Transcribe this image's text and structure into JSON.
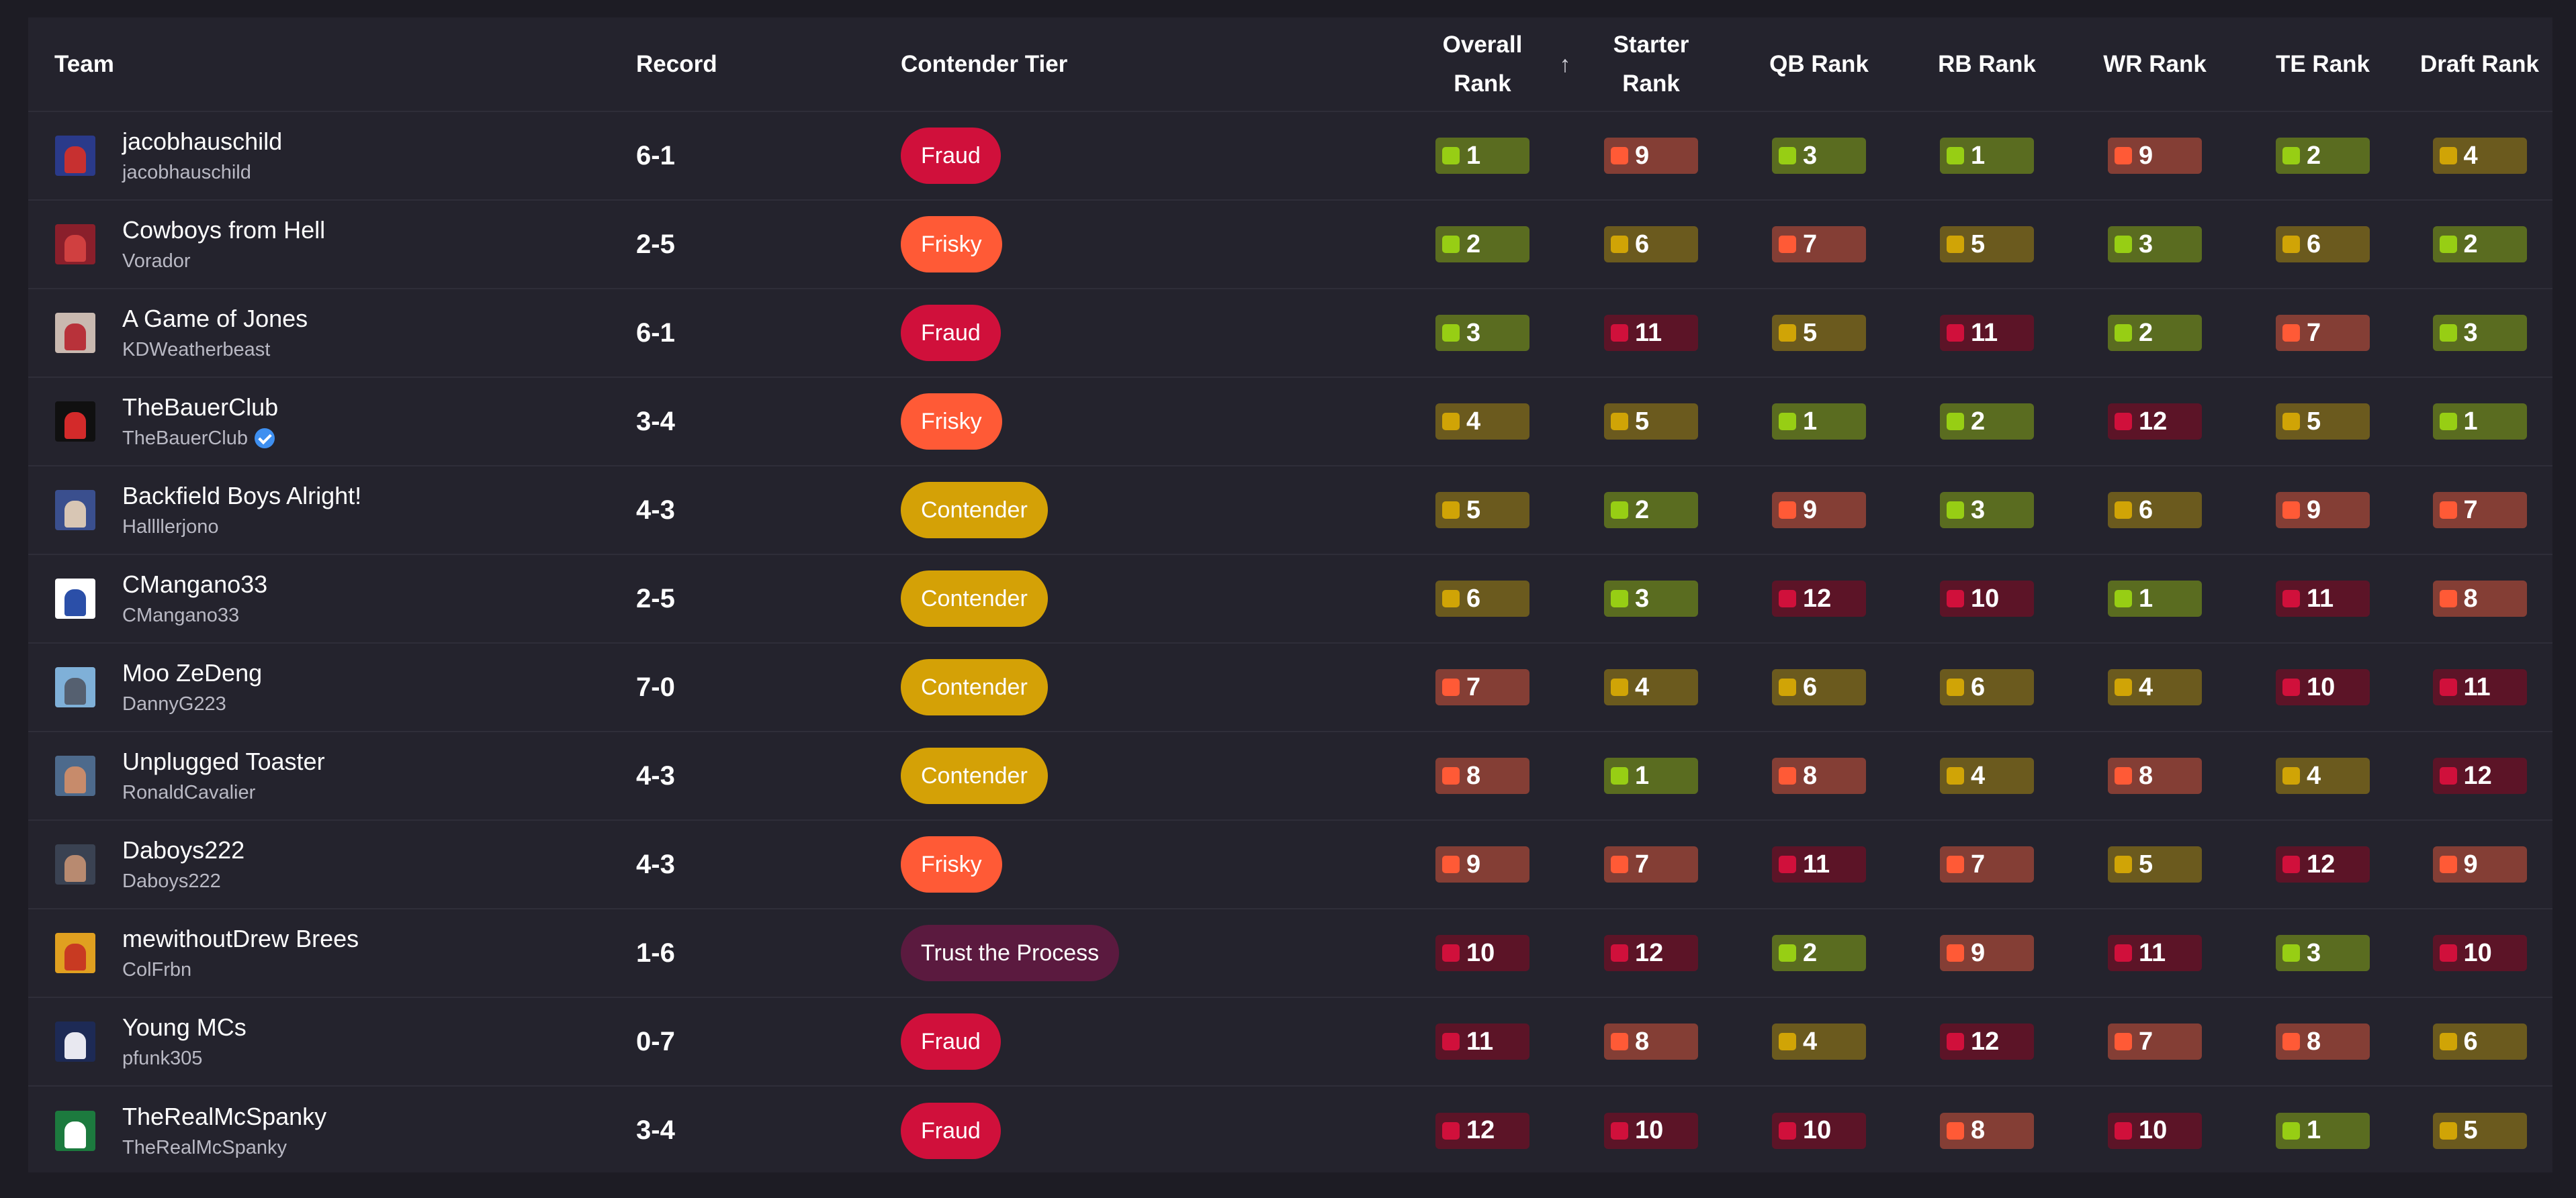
{
  "columns": {
    "team": "Team",
    "record": "Record",
    "tier": "Contender Tier",
    "overall_line1": "Overall",
    "overall_line2": "Rank",
    "sort_arrow": "↑",
    "starter_line1": "Starter",
    "starter_line2": "Rank",
    "qb": "QB Rank",
    "rb": "RB Rank",
    "wr": "WR Rank",
    "te": "TE Rank",
    "draft": "Draft Rank"
  },
  "colors": {
    "green_bg": "#5a6c20",
    "green_dot": "#97ce14",
    "gold_bg": "#6b5a1e",
    "gold_dot": "#d0a406",
    "orange_bg": "#843e35",
    "orange_dot": "#ff5a36",
    "red_bg": "#5c1427",
    "red_dot": "#d0103b"
  },
  "rows": [
    {
      "name": "jacobhauschild",
      "user": "jacobhauschild",
      "verified": false,
      "record": "6-1",
      "tier": "Fraud",
      "tier_class": "fraud",
      "avatar": [
        "#2a3a8a",
        "#c73030"
      ],
      "ranks": [
        1,
        9,
        3,
        1,
        9,
        2,
        4
      ]
    },
    {
      "name": "Cowboys from Hell",
      "user": "Vorador",
      "verified": false,
      "record": "2-5",
      "tier": "Frisky",
      "tier_class": "frisky",
      "avatar": [
        "#8a1f2b",
        "#d04040"
      ],
      "ranks": [
        2,
        6,
        7,
        5,
        3,
        6,
        2
      ]
    },
    {
      "name": "A Game of Jones",
      "user": "KDWeatherbeast",
      "verified": false,
      "record": "6-1",
      "tier": "Fraud",
      "tier_class": "fraud",
      "avatar": [
        "#c9b9b0",
        "#b8323a"
      ],
      "ranks": [
        3,
        11,
        5,
        11,
        2,
        7,
        3
      ]
    },
    {
      "name": "TheBauerClub",
      "user": "TheBauerClub",
      "verified": true,
      "record": "3-4",
      "tier": "Frisky",
      "tier_class": "frisky",
      "avatar": [
        "#101010",
        "#d32a2a"
      ],
      "ranks": [
        4,
        5,
        1,
        2,
        12,
        5,
        1
      ]
    },
    {
      "name": "Backfield Boys Alright!",
      "user": "Hallllerjono",
      "verified": false,
      "record": "4-3",
      "tier": "Contender",
      "tier_class": "contender",
      "avatar": [
        "#3a4f8e",
        "#d8c6b4"
      ],
      "ranks": [
        5,
        2,
        9,
        3,
        6,
        9,
        7
      ]
    },
    {
      "name": "CMangano33",
      "user": "CMangano33",
      "verified": false,
      "record": "2-5",
      "tier": "Contender",
      "tier_class": "contender",
      "avatar": [
        "#ffffff",
        "#2b4fa8"
      ],
      "ranks": [
        6,
        3,
        12,
        10,
        1,
        11,
        8
      ]
    },
    {
      "name": "Moo ZeDeng",
      "user": "DannyG223",
      "verified": false,
      "record": "7-0",
      "tier": "Contender",
      "tier_class": "contender",
      "avatar": [
        "#7fb0d8",
        "#556070"
      ],
      "ranks": [
        7,
        4,
        6,
        6,
        4,
        10,
        11
      ]
    },
    {
      "name": "Unplugged Toaster",
      "user": "RonaldCavalier",
      "verified": false,
      "record": "4-3",
      "tier": "Contender",
      "tier_class": "contender",
      "avatar": [
        "#4d6a8c",
        "#c78b6b"
      ],
      "ranks": [
        8,
        1,
        8,
        4,
        8,
        4,
        12
      ]
    },
    {
      "name": "Daboys222",
      "user": "Daboys222",
      "verified": false,
      "record": "4-3",
      "tier": "Frisky",
      "tier_class": "frisky",
      "avatar": [
        "#3a4252",
        "#b88a70"
      ],
      "ranks": [
        9,
        7,
        11,
        7,
        5,
        12,
        9
      ]
    },
    {
      "name": "mewithoutDrew Brees",
      "user": "ColFrbn",
      "verified": false,
      "record": "1-6",
      "tier": "Trust the Process",
      "tier_class": "process",
      "avatar": [
        "#e0a020",
        "#c83a22"
      ],
      "ranks": [
        10,
        12,
        2,
        9,
        11,
        3,
        10
      ]
    },
    {
      "name": "Young MCs",
      "user": "pfunk305",
      "verified": false,
      "record": "0-7",
      "tier": "Fraud",
      "tier_class": "fraud",
      "avatar": [
        "#1d2a55",
        "#e8e8f0"
      ],
      "ranks": [
        11,
        8,
        4,
        12,
        7,
        8,
        6
      ]
    },
    {
      "name": "TheRealMcSpanky",
      "user": "TheRealMcSpanky",
      "verified": false,
      "record": "3-4",
      "tier": "Fraud",
      "tier_class": "fraud",
      "avatar": [
        "#1c7a3e",
        "#ffffff"
      ],
      "ranks": [
        12,
        10,
        10,
        8,
        10,
        1,
        5
      ]
    }
  ]
}
